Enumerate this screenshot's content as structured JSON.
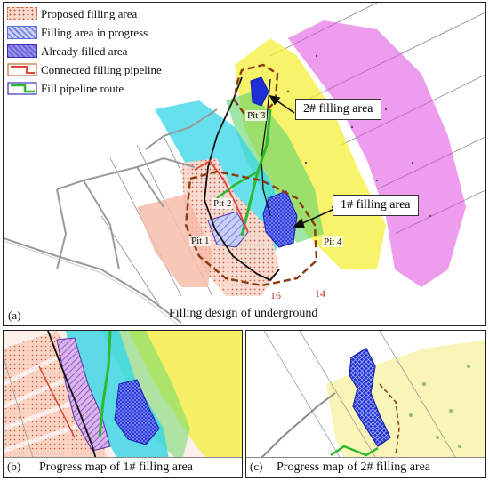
{
  "legend": {
    "proposed": "Proposed filling area",
    "in_progress": "Filling area in progress",
    "filled": "Already filled area",
    "connected_pipeline": "Connected filling pipeline",
    "pipeline_route": "Fill pipeline route"
  },
  "panel_a": {
    "letter": "(a)",
    "caption": "Filling design of underground",
    "callout_2": "2# filling area",
    "callout_1": "1# filling area",
    "pit1": "Pit 1",
    "pit2": "Pit 2",
    "pit3": "Pit 3",
    "pit4": "Pit 4",
    "label_16": "16",
    "label_14": "14"
  },
  "panel_b": {
    "letter": "(b)",
    "caption": "Progress map of 1# filling area"
  },
  "panel_c": {
    "letter": "(c)",
    "caption": "Progress map of 2# filling area"
  },
  "colors": {
    "proposed": "#f3b9a5",
    "in_progress": "#8a9be8",
    "filled": "#1f2fd6",
    "cyan": "#33d6e6",
    "yellow": "#f4ef3a",
    "magenta": "#e04be0",
    "green": "#2fb82f",
    "brown": "#8b3a0e",
    "pipeline_red": "#e0443a"
  }
}
